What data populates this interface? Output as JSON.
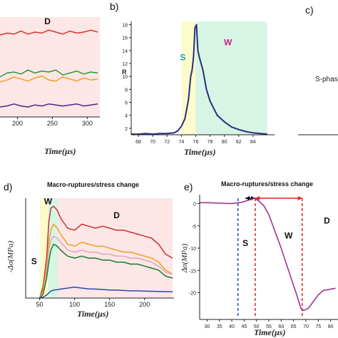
{
  "chart_data": [
    {
      "panel": "a",
      "type": "line",
      "xlabel": "Time(µs)",
      "x_ticks": [
        "200",
        "250",
        "300"
      ],
      "xlim": [
        175,
        318
      ],
      "ylim": [
        0,
        1
      ],
      "zone_labels": [
        {
          "text": "D",
          "x": 243,
          "y": 0.93
        }
      ],
      "shaded_regions": [
        {
          "label": "D",
          "x": [
            175,
            318
          ],
          "color": "#fde6e6"
        }
      ],
      "series": [
        {
          "color": "#e03030",
          "x": [
            175,
            185,
            195,
            205,
            215,
            225,
            235,
            245,
            255,
            265,
            275,
            285,
            295,
            305,
            315
          ],
          "values": [
            0.82,
            0.84,
            0.83,
            0.86,
            0.83,
            0.85,
            0.84,
            0.87,
            0.85,
            0.83,
            0.86,
            0.84,
            0.85,
            0.87,
            0.85
          ]
        },
        {
          "color": "#2a9a3a",
          "x": [
            175,
            185,
            195,
            205,
            215,
            225,
            235,
            245,
            255,
            265,
            275,
            285,
            295,
            305,
            315
          ],
          "values": [
            0.4,
            0.44,
            0.45,
            0.43,
            0.47,
            0.44,
            0.46,
            0.45,
            0.47,
            0.42,
            0.44,
            0.46,
            0.43,
            0.45,
            0.44
          ]
        },
        {
          "color": "#f0a020",
          "x": [
            175,
            185,
            195,
            205,
            215,
            225,
            235,
            245,
            255,
            265,
            275,
            285,
            295,
            305,
            315
          ],
          "values": [
            0.35,
            0.37,
            0.4,
            0.38,
            0.36,
            0.39,
            0.41,
            0.37,
            0.36,
            0.4,
            0.38,
            0.36,
            0.39,
            0.37,
            0.38
          ]
        },
        {
          "color": "#4a2a8a",
          "x": [
            175,
            185,
            195,
            205,
            215,
            225,
            235,
            245,
            255,
            265,
            275,
            285,
            295,
            305,
            315
          ],
          "values": [
            0.1,
            0.11,
            0.13,
            0.11,
            0.1,
            0.12,
            0.11,
            0.13,
            0.12,
            0.11,
            0.12,
            0.13,
            0.11,
            0.12,
            0.13
          ]
        }
      ]
    },
    {
      "panel": "b",
      "type": "line",
      "panel_label": "b)",
      "xlabel": "Time(µs)",
      "ylabel": "R",
      "x_ticks": [
        "68",
        "70",
        "72",
        "74",
        "76",
        "78",
        "80",
        "82",
        "84"
      ],
      "y_ticks": [
        "2",
        "4",
        "6",
        "8",
        "10",
        "12",
        "14",
        "16",
        "18"
      ],
      "xlim": [
        67,
        87
      ],
      "ylim": [
        1,
        18.5
      ],
      "zone_labels": [
        {
          "text": "S",
          "x": 74.2,
          "y": 12.5,
          "color": "#1aa0c0"
        },
        {
          "text": "W",
          "x": 80.5,
          "y": 14.8,
          "color": "#d0208a"
        }
      ],
      "shaded_regions": [
        {
          "label": "S",
          "x": [
            74,
            76
          ],
          "color": "#fbfbcc"
        },
        {
          "label": "W",
          "x": [
            76,
            86
          ],
          "color": "#d6f5e4"
        }
      ],
      "series": [
        {
          "color": "#2a2d7a",
          "x": [
            67,
            68,
            69,
            70,
            71,
            72,
            73,
            73.5,
            74,
            74.5,
            75,
            75.3,
            75.5,
            75.7,
            75.9,
            76.1,
            76.3,
            76.5,
            77,
            77.5,
            78,
            79,
            80,
            81,
            82,
            83,
            84,
            85,
            86
          ],
          "values": [
            1.1,
            1.1,
            1.2,
            1.1,
            1.2,
            1.2,
            1.3,
            1.6,
            2.3,
            3.5,
            6.5,
            10.0,
            11.0,
            13.0,
            17.5,
            18.0,
            14.0,
            13.0,
            11.0,
            8.0,
            6.2,
            4.0,
            3.0,
            2.2,
            1.8,
            1.5,
            1.3,
            1.2,
            1.1
          ]
        }
      ]
    },
    {
      "panel": "c",
      "type": "line",
      "panel_label": "c)",
      "visible_text": "S-phas"
    },
    {
      "panel": "d",
      "type": "line",
      "panel_label": "d)",
      "title": "Macro-ruptures/stress change",
      "xlabel": "Time(µs)",
      "ylabel": "-Δσ(MPa)",
      "x_ticks": [
        "50",
        "100",
        "150",
        "200"
      ],
      "xlim": [
        30,
        242
      ],
      "ylim": [
        0,
        50
      ],
      "zone_labels": [
        {
          "text": "S",
          "x": 42,
          "y": 17
        },
        {
          "text": "W",
          "x": 62,
          "y": 47
        },
        {
          "text": "D",
          "x": 160,
          "y": 40
        }
      ],
      "shaded_regions": [
        {
          "label": "S",
          "x": [
            50,
            62
          ],
          "color": "#fbfbcc"
        },
        {
          "label": "W",
          "x": [
            62,
            76
          ],
          "color": "#d6f5e4"
        },
        {
          "label": "D",
          "x": [
            76,
            240
          ],
          "color": "#fde6e6"
        }
      ],
      "series": [
        {
          "color": "#c83030",
          "x": [
            50,
            55,
            60,
            63,
            66,
            70,
            75,
            80,
            90,
            100,
            110,
            120,
            130,
            140,
            150,
            160,
            170,
            180,
            190,
            200,
            210,
            220,
            230,
            240
          ],
          "values": [
            0,
            6,
            20,
            38,
            45,
            46,
            44,
            40,
            35,
            34,
            37,
            36,
            35,
            36,
            35,
            34,
            34,
            33,
            32,
            31,
            30,
            27,
            22,
            20
          ]
        },
        {
          "color": "#f0a020",
          "x": [
            50,
            55,
            60,
            63,
            66,
            70,
            75,
            80,
            90,
            100,
            110,
            120,
            130,
            140,
            150,
            160,
            170,
            180,
            190,
            200,
            210,
            220,
            230,
            240
          ],
          "values": [
            0,
            4,
            15,
            28,
            34,
            37,
            35,
            32,
            27,
            26,
            28,
            27,
            26,
            26,
            25,
            24,
            23,
            23,
            22,
            21,
            20,
            18,
            14,
            12
          ]
        },
        {
          "color": "#d8a8b8",
          "x": [
            50,
            55,
            60,
            63,
            66,
            70,
            75,
            80,
            90,
            100,
            110,
            120,
            130,
            140,
            150,
            160,
            170,
            180,
            190,
            200,
            210,
            220,
            230,
            240
          ],
          "values": [
            0,
            3,
            13,
            24,
            29,
            31,
            30,
            28,
            24,
            23,
            24,
            23,
            23,
            22,
            22,
            21,
            21,
            20,
            20,
            19,
            18,
            16,
            13,
            12
          ]
        },
        {
          "color": "#1a7a2a",
          "x": [
            50,
            55,
            60,
            63,
            66,
            70,
            75,
            80,
            90,
            100,
            110,
            120,
            130,
            140,
            150,
            160,
            170,
            180,
            190,
            200,
            210,
            220,
            230,
            240
          ],
          "values": [
            0,
            2,
            10,
            18,
            24,
            27,
            26,
            24,
            21,
            20,
            21,
            20,
            20,
            19,
            19,
            18,
            18,
            17,
            17,
            16,
            15,
            14,
            11,
            10
          ]
        },
        {
          "color": "#2a4aa8",
          "x": [
            50,
            55,
            60,
            63,
            66,
            70,
            75,
            80,
            90,
            100,
            110,
            120,
            130,
            140,
            150,
            160,
            170,
            180,
            190,
            200,
            210,
            220,
            230,
            240
          ],
          "values": [
            0,
            0.5,
            1.5,
            2.5,
            3.5,
            4.0,
            4.2,
            4.5,
            5.0,
            5.5,
            5.0,
            4.6,
            4.5,
            4.3,
            4.0,
            4.0,
            3.8,
            3.6,
            3.6,
            3.5,
            3.4,
            3.3,
            3.2,
            3.2
          ]
        }
      ]
    },
    {
      "panel": "e",
      "type": "line",
      "panel_label": "e)",
      "title": "Macro-ruptures/stress change",
      "xlabel": "Time(µs)",
      "ylabel": "Δσ(MPa)",
      "x_ticks": [
        "30",
        "35",
        "40",
        "45",
        "50",
        "55",
        "60",
        "65",
        "70",
        "75",
        "80"
      ],
      "y_ticks": [
        "0",
        "-5",
        "-10",
        "-15",
        "-20"
      ],
      "xlim": [
        27,
        83
      ],
      "ylim": [
        -26,
        2
      ],
      "zone_labels": [
        {
          "text": "S",
          "x": 45.5,
          "y": -9.5
        },
        {
          "text": "W",
          "x": 63,
          "y": -7.8
        },
        {
          "text": "D",
          "x": 78.5,
          "y": -4.5
        }
      ],
      "markers": [
        {
          "x": 42.5,
          "color": "#1a50c0",
          "style": "dashed"
        },
        {
          "x": 49.5,
          "color": "#e02020",
          "style": "dashed"
        },
        {
          "x": 68.5,
          "color": "#e02020",
          "style": "dashed"
        }
      ],
      "arrows": [
        {
          "x": [
            45.5,
            49.5
          ],
          "y": 1.2,
          "color": "#000000"
        },
        {
          "x": [
            49.5,
            68.5
          ],
          "y": 1.2,
          "color": "#e02020"
        }
      ],
      "series": [
        {
          "color": "#9a2a8a",
          "x": [
            27,
            30,
            35,
            40,
            44,
            47,
            49,
            51,
            53,
            55,
            57,
            60,
            63,
            66,
            68,
            69,
            71,
            73,
            75,
            77,
            80,
            82
          ],
          "values": [
            0.2,
            0.2,
            0.1,
            0.0,
            0.3,
            0.8,
            1.2,
            0.6,
            -0.5,
            -2.5,
            -5.5,
            -10.0,
            -15.0,
            -20.0,
            -23.5,
            -24.0,
            -23.5,
            -22.0,
            -20.5,
            -19.5,
            -19.2,
            -19.0
          ]
        }
      ]
    }
  ]
}
